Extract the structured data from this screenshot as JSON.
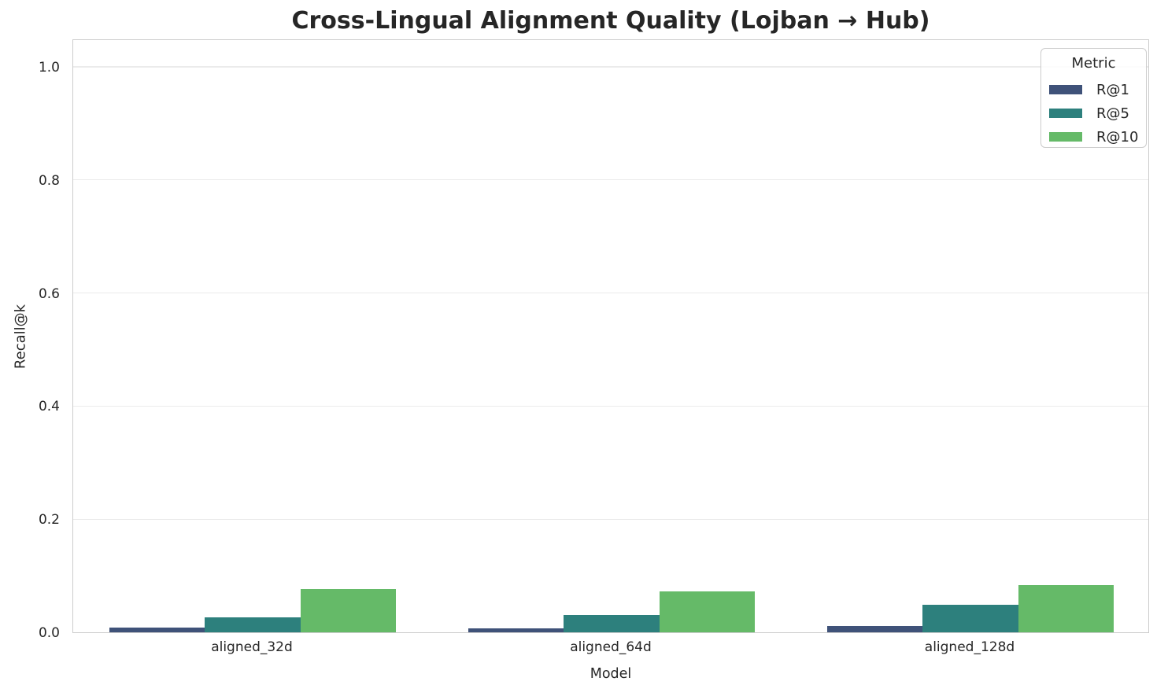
{
  "figure": {
    "title": "Cross-Lingual Alignment Quality (Lojban → Hub)"
  },
  "chart_data": {
    "type": "bar",
    "title": "Cross-Lingual Alignment Quality (Lojban → Hub)",
    "xlabel": "Model",
    "ylabel": "Recall@k",
    "categories": [
      "aligned_32d",
      "aligned_64d",
      "aligned_128d"
    ],
    "series": [
      {
        "name": "R@1",
        "color": "#3f5279",
        "values": [
          0.008,
          0.007,
          0.011
        ]
      },
      {
        "name": "R@5",
        "color": "#2d807d",
        "values": [
          0.026,
          0.031,
          0.049
        ]
      },
      {
        "name": "R@10",
        "color": "#65ba68",
        "values": [
          0.076,
          0.073,
          0.084
        ]
      }
    ],
    "ylim": [
      0,
      1.05
    ],
    "yticks": [
      0.0,
      0.2,
      0.4,
      0.6,
      0.8,
      1.0
    ],
    "ytick_labels": [
      "0.0",
      "0.2",
      "0.4",
      "0.6",
      "0.8",
      "1.0"
    ],
    "grid": true,
    "legend_title": "Metric",
    "legend_position": "upper right"
  },
  "colors": {
    "grid": "#ebebeb",
    "axis_border": "#cccccc",
    "text": "#262626",
    "background": "#ffffff"
  }
}
